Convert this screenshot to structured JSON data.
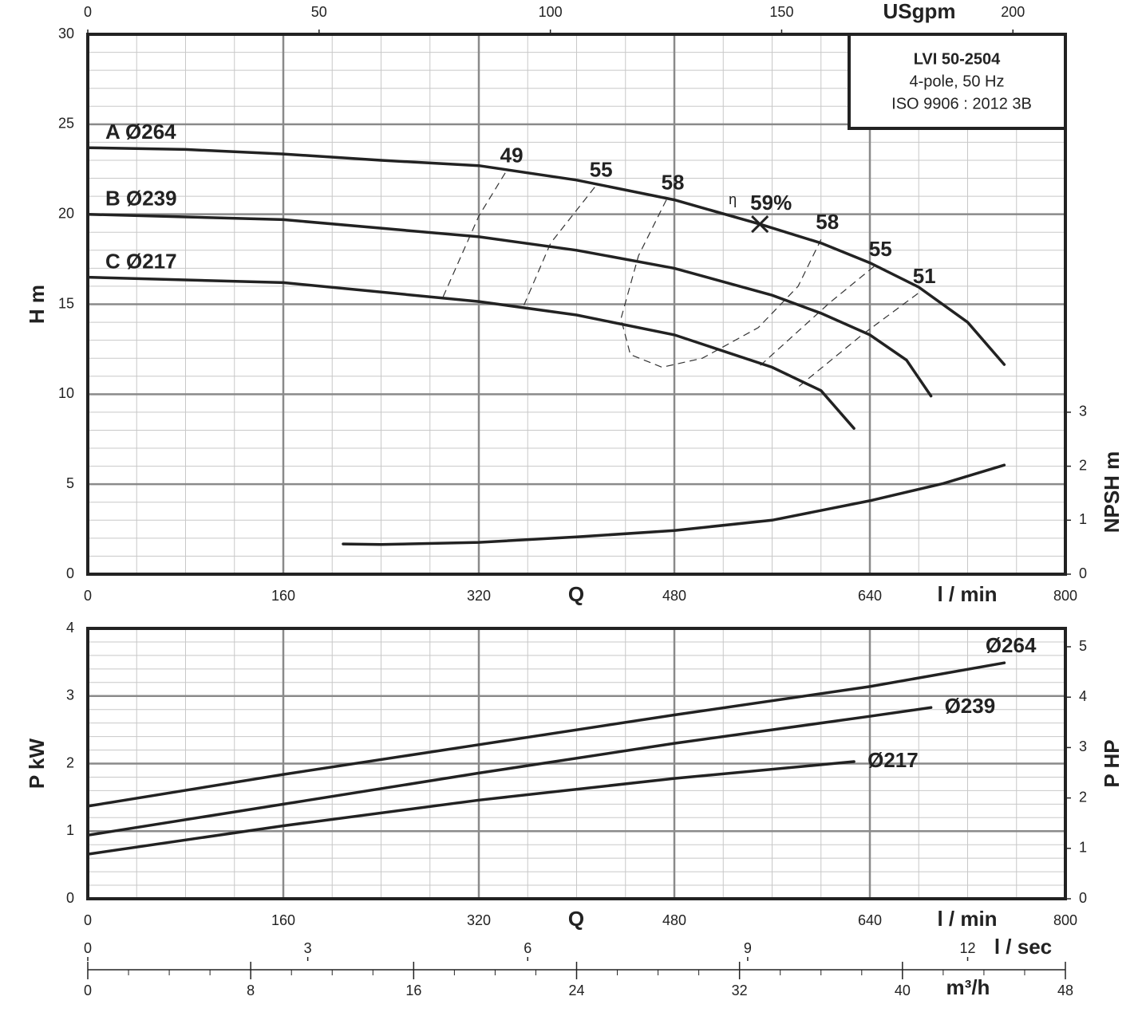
{
  "chart_data": [
    {
      "type": "line",
      "info_box": [
        "LVI 50-2504",
        "4-pole, 50 Hz",
        "ISO 9906 : 2012 3B"
      ],
      "x_label": "Q",
      "x_unit": "l / min",
      "xlim": [
        0,
        800
      ],
      "xticks": [
        0,
        160,
        320,
        480,
        640,
        800
      ],
      "x2_label": "USgpm",
      "x2lim": [
        0,
        211.34
      ],
      "x2ticks": [
        0,
        50,
        100,
        150,
        200
      ],
      "y_label": "H m",
      "ylim": [
        0,
        30
      ],
      "yticks": [
        0,
        5,
        10,
        15,
        20,
        25,
        30
      ],
      "y2_label": "NPSH m",
      "y2lim": [
        0,
        10
      ],
      "y2ticks": [
        0,
        1,
        2,
        3
      ],
      "grid": true,
      "series": [
        {
          "name": "A Ø264",
          "color": "#222222",
          "x": [
            0,
            80,
            160,
            240,
            320,
            400,
            480,
            550,
            600,
            640,
            680,
            720,
            750
          ],
          "values": [
            23.7,
            23.6,
            23.35,
            23.0,
            22.7,
            21.9,
            20.8,
            19.45,
            18.4,
            17.3,
            15.95,
            14.0,
            11.65
          ]
        },
        {
          "name": "B Ø239",
          "color": "#222222",
          "x": [
            0,
            160,
            320,
            400,
            480,
            560,
            600,
            640,
            670,
            690
          ],
          "values": [
            20.0,
            19.7,
            18.75,
            18.0,
            17.0,
            15.5,
            14.5,
            13.3,
            11.9,
            9.9
          ]
        },
        {
          "name": "C Ø217",
          "color": "#222222",
          "x": [
            0,
            160,
            320,
            400,
            480,
            560,
            600,
            627
          ],
          "values": [
            16.5,
            16.2,
            15.15,
            14.4,
            13.3,
            11.5,
            10.2,
            8.1
          ]
        },
        {
          "color": "#222222",
          "axis": "y2",
          "x": [
            209,
            240,
            320,
            400,
            480,
            560,
            640,
            700,
            750
          ],
          "values": [
            0.56,
            0.55,
            0.59,
            0.69,
            0.81,
            1.0,
            1.36,
            1.68,
            2.02
          ]
        }
      ],
      "efficiency_contours": [
        {
          "labels": [
            "49"
          ],
          "x": [
            341.6,
            320,
            290.7
          ],
          "values": [
            22.3,
            19.9,
            15.4
          ]
        },
        {
          "labels": [
            "55"
          ],
          "x": [
            414.8,
            378.8,
            356
          ],
          "values": [
            21.5,
            18.4,
            14.8
          ]
        },
        {
          "labels": [
            "58",
            "58"
          ],
          "x": [
            473.5,
            450.7,
            436.3,
            444,
            470,
            502.9,
            548.7,
            581.3,
            600
          ],
          "values": [
            20.8,
            17.7,
            14.2,
            12.2,
            11.5,
            12.0,
            13.7,
            16.0,
            18.6
          ]
        },
        {
          "labels": [
            "55"
          ],
          "x": [
            643.4,
            607.4,
            548.7
          ],
          "values": [
            17.1,
            15.1,
            11.5
          ]
        },
        {
          "labels": [
            "51"
          ],
          "x": [
            679.3,
            633.6,
            581.3
          ],
          "values": [
            15.6,
            13.3,
            10.4
          ]
        }
      ],
      "efficiency": {
        "symbol": "η",
        "label": "59%",
        "x": 550,
        "value": 19.45
      }
    },
    {
      "type": "line",
      "x_label": "Q",
      "x_unit": "l / min",
      "xlim": [
        0,
        800
      ],
      "xticks": [
        0,
        160,
        320,
        480,
        640,
        800
      ],
      "y_label": "P kW",
      "ylim": [
        0,
        4
      ],
      "yticks": [
        0,
        1,
        2,
        3,
        4
      ],
      "y2_label": "P HP",
      "y2lim": [
        0,
        5.364
      ],
      "y2ticks": [
        0,
        1,
        2,
        3,
        4,
        5
      ],
      "grid": true,
      "series": [
        {
          "name": "Ø264",
          "color": "#222222",
          "x": [
            0,
            160,
            320,
            480,
            640,
            750
          ],
          "values": [
            1.37,
            1.84,
            2.28,
            2.72,
            3.14,
            3.49
          ]
        },
        {
          "name": "Ø239",
          "color": "#222222",
          "x": [
            0,
            160,
            320,
            480,
            640,
            690
          ],
          "values": [
            0.94,
            1.4,
            1.86,
            2.3,
            2.7,
            2.83
          ]
        },
        {
          "name": "Ø217",
          "color": "#222222",
          "x": [
            0,
            160,
            320,
            480,
            627
          ],
          "values": [
            0.66,
            1.08,
            1.46,
            1.78,
            2.03
          ]
        }
      ],
      "extra_x_axes": [
        {
          "label": "l / sec",
          "lim": [
            0,
            13.333
          ],
          "ticks": [
            0,
            3,
            6,
            9,
            12
          ]
        },
        {
          "label": "m³/h",
          "lim": [
            0,
            48
          ],
          "ticks": [
            0,
            8,
            16,
            24,
            32,
            40,
            48
          ]
        }
      ]
    }
  ]
}
